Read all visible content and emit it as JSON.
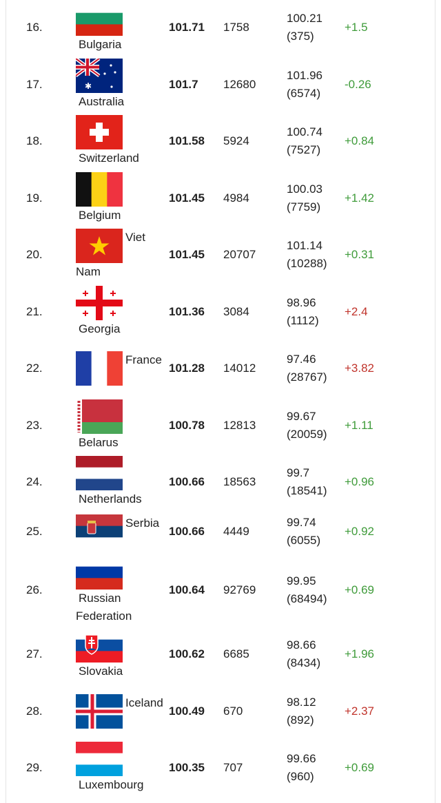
{
  "colors": {
    "positive": "#3f9b3a",
    "negative": "#c0332b"
  },
  "rows": [
    {
      "rank": "16.",
      "country": "Bulgaria",
      "flag": "bulgaria-flag-icon",
      "score": "101.71",
      "count": "1758",
      "prev": "100.21",
      "prev_count": "(375)",
      "change": "+1.5",
      "change_color": "positive"
    },
    {
      "rank": "17.",
      "country": "Australia",
      "flag": "australia-flag-icon",
      "score": "101.7",
      "count": "12680",
      "prev": "101.96",
      "prev_count": "(6574)",
      "change": "-0.26",
      "change_color": "positive"
    },
    {
      "rank": "18.",
      "country": "Switzerland",
      "flag": "switzerland-flag-icon",
      "score": "101.58",
      "count": "5924",
      "prev": "100.74",
      "prev_count": "(7527)",
      "change": "+0.84",
      "change_color": "positive"
    },
    {
      "rank": "19.",
      "country": "Belgium",
      "flag": "belgium-flag-icon",
      "score": "101.45",
      "count": "4984",
      "prev": "100.03",
      "prev_count": "(7759)",
      "change": "+1.42",
      "change_color": "positive"
    },
    {
      "rank": "20.",
      "country": "Viet Nam",
      "flag": "vietnam-flag-icon",
      "score": "101.45",
      "count": "20707",
      "prev": "101.14",
      "prev_count": "(10288)",
      "change": "+0.31",
      "change_color": "positive"
    },
    {
      "rank": "21.",
      "country": "Georgia",
      "flag": "georgia-flag-icon",
      "score": "101.36",
      "count": "3084",
      "prev": "98.96",
      "prev_count": "(1112)",
      "change": "+2.4",
      "change_color": "negative"
    },
    {
      "rank": "22.",
      "country": "France",
      "flag": "france-flag-icon",
      "score": "101.28",
      "count": "14012",
      "prev": "97.46",
      "prev_count": "(28767)",
      "change": "+3.82",
      "change_color": "negative"
    },
    {
      "rank": "23.",
      "country": "Belarus",
      "flag": "belarus-flag-icon",
      "score": "100.78",
      "count": "12813",
      "prev": "99.67",
      "prev_count": "(20059)",
      "change": "+1.11",
      "change_color": "positive"
    },
    {
      "rank": "24.",
      "country": "Netherlands",
      "flag": "netherlands-flag-icon",
      "score": "100.66",
      "count": "18563",
      "prev": "99.7",
      "prev_count": "(18541)",
      "change": "+0.96",
      "change_color": "positive"
    },
    {
      "rank": "25.",
      "country": "Serbia",
      "flag": "serbia-flag-icon",
      "score": "100.66",
      "count": "4449",
      "prev": "99.74",
      "prev_count": "(6055)",
      "change": "+0.92",
      "change_color": "positive"
    },
    {
      "rank": "26.",
      "country": "Russian Federation",
      "flag": "russia-flag-icon",
      "score": "100.64",
      "count": "92769",
      "prev": "99.95",
      "prev_count": "(68494)",
      "change": "+0.69",
      "change_color": "positive"
    },
    {
      "rank": "27.",
      "country": "Slovakia",
      "flag": "slovakia-flag-icon",
      "score": "100.62",
      "count": "6685",
      "prev": "98.66",
      "prev_count": "(8434)",
      "change": "+1.96",
      "change_color": "positive"
    },
    {
      "rank": "28.",
      "country": "Iceland",
      "flag": "iceland-flag-icon",
      "score": "100.49",
      "count": "670",
      "prev": "98.12",
      "prev_count": "(892)",
      "change": "+2.37",
      "change_color": "negative"
    },
    {
      "rank": "29.",
      "country": "Luxembourg",
      "flag": "luxembourg-flag-icon",
      "score": "100.35",
      "count": "707",
      "prev": "99.66",
      "prev_count": "(960)",
      "change": "+0.69",
      "change_color": "positive"
    }
  ]
}
